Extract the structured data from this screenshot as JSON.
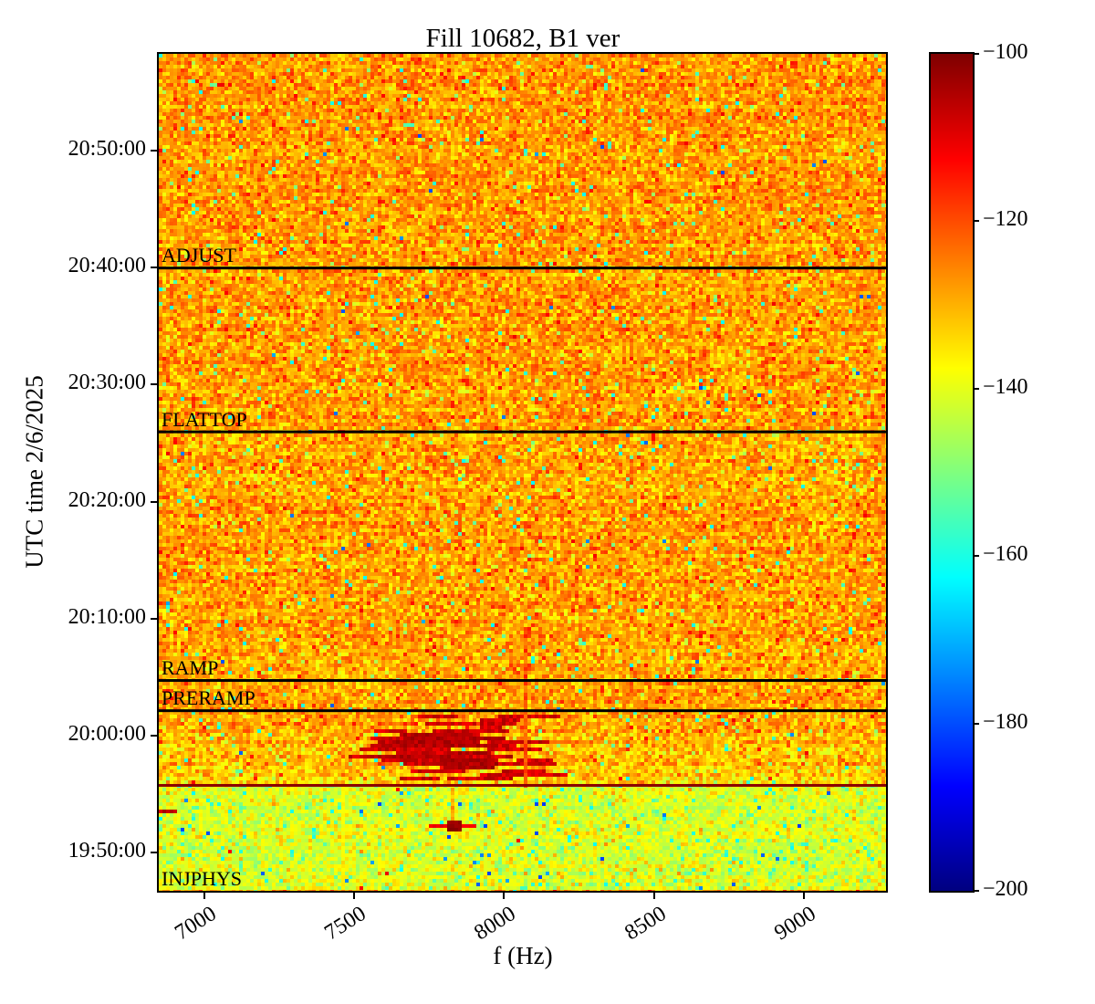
{
  "chart_data": {
    "type": "heatmap",
    "subtype": "spectrogram",
    "title": "Fill 10682, B1 ver",
    "xlabel": "f (Hz)",
    "ylabel": "UTC time 2/6/2025",
    "freq_range_hz": [
      6848,
      9274
    ],
    "time_range_utc": [
      "19:46:44",
      "20:58:16"
    ],
    "x_ticks_hz": [
      7000,
      7500,
      8000,
      8500,
      9000
    ],
    "x_tick_labels": [
      "7000",
      "7500",
      "8000",
      "8500",
      "9000"
    ],
    "y_ticks_utc": [
      "20:50:00",
      "20:40:00",
      "20:30:00",
      "20:20:00",
      "20:10:00",
      "20:00:00",
      "19:50:00"
    ],
    "colormap": "jet",
    "colorbar": {
      "range_db": [
        -200,
        -100
      ],
      "ticks_db": [
        -100,
        -120,
        -140,
        -160,
        -180,
        -200
      ],
      "tick_labels": [
        "−100",
        "−120",
        "−140",
        "−160",
        "−180",
        "−200"
      ]
    },
    "beam_mode_lines": [
      {
        "label": "ADJUST",
        "time": "20:40:00",
        "color": "#000000"
      },
      {
        "label": "FLATTOP",
        "time": "20:26:00",
        "color": "#000000"
      },
      {
        "label": "RAMP",
        "time": "20:04:45",
        "color": "#000000"
      },
      {
        "label": "PRERAMP",
        "time": "20:02:10",
        "color": "#000000"
      },
      {
        "label": "INJPHYS",
        "time": "19:46:44",
        "color": "#000000"
      }
    ],
    "injection_boundary_line": {
      "time": "19:55:47",
      "color": "#8b0000",
      "value_db": -103
    },
    "noise_regions": [
      {
        "name": "injphys-floor",
        "t_start": "19:46:44",
        "t_end": "19:55:47",
        "mean_db": -141,
        "std_db": 4.2,
        "specks": [
          {
            "p": 0.05,
            "min": -162,
            "max": -148
          },
          {
            "p": 0.006,
            "min": -182,
            "max": -170
          },
          {
            "p": 0.015,
            "min": -132,
            "max": -126
          },
          {
            "p": 0.001,
            "min": -116,
            "max": -110
          }
        ]
      },
      {
        "name": "boundary-to-preramp",
        "t_start": "19:55:47",
        "t_end": "20:02:10",
        "mean_start_db": -133.5,
        "mean_end_db": -128.5,
        "std_db": 5.2,
        "specks": [
          {
            "p": 0.022,
            "min": -163,
            "max": -144
          },
          {
            "p": 0.0015,
            "min": -180,
            "max": -170
          },
          {
            "p": 0.006,
            "min": -116,
            "max": -111
          }
        ]
      },
      {
        "name": "preramp-to-ramp",
        "t_start": "20:02:10",
        "t_end": "20:04:45",
        "mean_db": -128.6,
        "std_db": 5.2,
        "specks": [
          {
            "p": 0.022,
            "min": -163,
            "max": -144
          },
          {
            "p": 0.0015,
            "min": -180,
            "max": -170
          },
          {
            "p": 0.007,
            "min": -116,
            "max": -111
          }
        ]
      },
      {
        "name": "ramp-to-flattop",
        "t_start": "20:04:45",
        "t_end": "20:26:00",
        "mean_db": -128.4,
        "std_db": 5.2,
        "specks": [
          {
            "p": 0.022,
            "min": -163,
            "max": -144
          },
          {
            "p": 0.0015,
            "min": -180,
            "max": -170
          },
          {
            "p": 0.006,
            "min": -116,
            "max": -111
          }
        ]
      },
      {
        "name": "flattop-to-adjust",
        "t_start": "20:26:00",
        "t_end": "20:40:00",
        "mean_db": -128,
        "std_db": 5.2,
        "specks": [
          {
            "p": 0.022,
            "min": -163,
            "max": -144
          },
          {
            "p": 0.0015,
            "min": -180,
            "max": -170
          },
          {
            "p": 0.006,
            "min": -116,
            "max": -111
          }
        ]
      },
      {
        "name": "adjust-to-end",
        "t_start": "20:40:00",
        "t_end": "20:58:16",
        "mean_db": -127.5,
        "std_db": 5.0,
        "specks": [
          {
            "p": 0.022,
            "min": -163,
            "max": -144
          },
          {
            "p": 0.0015,
            "min": -180,
            "max": -170
          },
          {
            "p": 0.006,
            "min": -116,
            "max": -111
          }
        ]
      }
    ],
    "features": [
      {
        "type": "dash_cluster",
        "count": 46,
        "f_min_hz": 7580,
        "f_max_hz": 8160,
        "len_min_hz": 60,
        "len_max_hz": 210,
        "t_start": "19:56:05",
        "t_end": "20:01:55",
        "v_min_db": -112,
        "v_max_db": -104
      },
      {
        "type": "dash_cluster",
        "count": 14,
        "f_min_hz": 7660,
        "f_max_hz": 7890,
        "len_min_hz": 90,
        "len_max_hz": 260,
        "t_start": "19:57:00",
        "t_end": "20:00:10",
        "v_min_db": -108,
        "v_max_db": -102
      },
      {
        "type": "vline",
        "f_hz": 8070,
        "t_start": "19:55:50",
        "t_end": "20:09:15",
        "v_db": -121,
        "jitter_db": 3
      },
      {
        "type": "vline",
        "f_hz": 7833,
        "t_start": "19:52:30",
        "t_end": "19:55:30",
        "v_db": -128,
        "jitter_db": 3
      },
      {
        "type": "vline",
        "f_hz": 7460,
        "t_start": "19:47:00",
        "t_end": "19:55:40",
        "v_db": -137,
        "jitter_db": 1.5
      },
      {
        "type": "hdash",
        "f_min_hz": 7757,
        "f_max_hz": 7808,
        "time": "19:52:10",
        "v_db": -111
      },
      {
        "type": "hdash",
        "f_min_hz": 7818,
        "f_max_hz": 7852,
        "time": "19:52:10",
        "v_db": -106
      },
      {
        "type": "hdash",
        "f_min_hz": 7862,
        "f_max_hz": 7902,
        "time": "19:52:10",
        "v_db": -112
      },
      {
        "type": "blob",
        "f_min_hz": 7820,
        "f_max_hz": 7848,
        "t_start": "19:51:55",
        "t_end": "19:52:35",
        "v_db": -102
      },
      {
        "type": "hdash",
        "f_min_hz": 6852,
        "f_max_hz": 6898,
        "time": "19:53:30",
        "v_db": -106
      }
    ]
  }
}
